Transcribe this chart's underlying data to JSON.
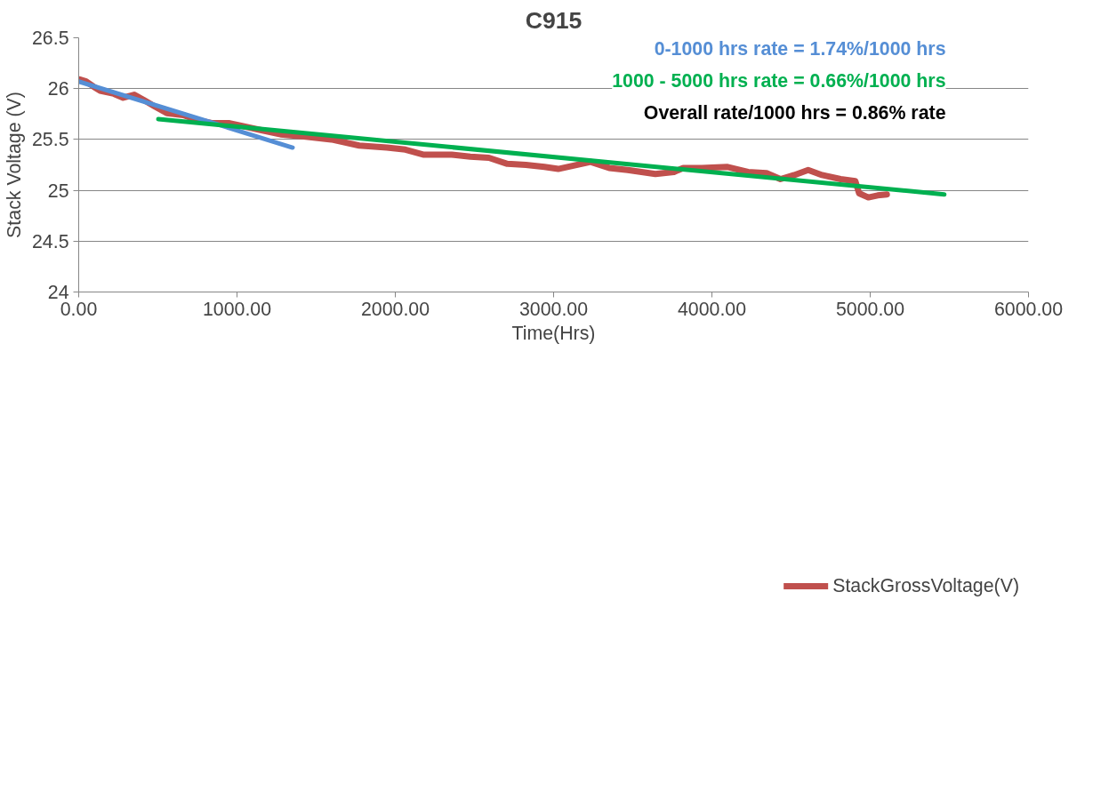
{
  "chart_data": {
    "type": "line",
    "title": "C915",
    "xlabel": "Time(Hrs)",
    "ylabel": "Stack Voltage (V)",
    "xlim": [
      0,
      6000
    ],
    "ylim": [
      24,
      26.5
    ],
    "xticks": [
      {
        "value": 0,
        "label": "0.00"
      },
      {
        "value": 1000,
        "label": "1000.00"
      },
      {
        "value": 2000,
        "label": "2000.00"
      },
      {
        "value": 3000,
        "label": "3000.00"
      },
      {
        "value": 4000,
        "label": "4000.00"
      },
      {
        "value": 5000,
        "label": "5000.00"
      },
      {
        "value": 6000,
        "label": "6000.00"
      }
    ],
    "yticks": [
      24,
      24.5,
      25,
      25.5,
      26,
      26.5
    ],
    "grid": "y",
    "legend": "bottom",
    "line_style": "solid",
    "marker": "none",
    "annotations": [
      "0-1000 hrs rate = 1.74%/1000 hrs",
      "1000 - 5000 hrs rate = 0.66%/1000 hrs",
      "Overall rate/1000 hrs = 0.86% rate"
    ],
    "series": [
      {
        "name": "StackGrossVoltage(V)",
        "color": "#c0504d",
        "x": [
          6,
          47,
          94,
          135,
          222,
          281,
          351,
          409,
          485,
          556,
          661,
          749,
          848,
          953,
          1012,
          1129,
          1275,
          1421,
          1596,
          1772,
          1947,
          2064,
          2181,
          2357,
          2474,
          2591,
          2708,
          2825,
          2942,
          3029,
          3234,
          3351,
          3468,
          3643,
          3760,
          3819,
          3936,
          4099,
          4228,
          4345,
          4433,
          4520,
          4608,
          4696,
          4813,
          4906,
          4930,
          4988,
          5047,
          5105
        ],
        "values": [
          26.09,
          26.07,
          26.02,
          25.98,
          25.95,
          25.91,
          25.94,
          25.89,
          25.82,
          25.76,
          25.74,
          25.69,
          25.66,
          25.66,
          25.64,
          25.6,
          25.55,
          25.53,
          25.5,
          25.44,
          25.42,
          25.4,
          25.35,
          25.35,
          25.33,
          25.32,
          25.26,
          25.25,
          25.23,
          25.21,
          25.28,
          25.22,
          25.2,
          25.16,
          25.18,
          25.22,
          25.22,
          25.23,
          25.18,
          25.17,
          25.11,
          25.15,
          25.2,
          25.15,
          25.11,
          25.09,
          24.97,
          24.93,
          24.95,
          24.96
        ]
      },
      {
        "color": "#558ed5",
        "x": [
          0,
          1351
        ],
        "values": [
          26.07,
          25.42
        ]
      },
      {
        "color": "#00b050",
        "x": [
          503,
          5468
        ],
        "values": [
          25.7,
          24.96
        ]
      }
    ]
  }
}
